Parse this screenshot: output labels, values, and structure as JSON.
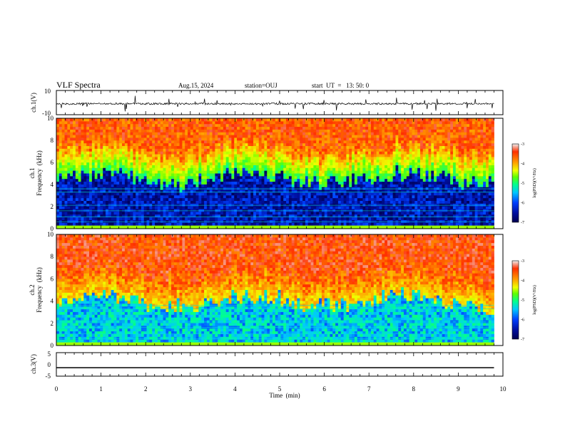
{
  "header": {
    "title": "VLF Spectra",
    "date": "Aug.15, 2024",
    "station": "station=OUJ",
    "start": "start  UT  =   13: 50: 0"
  },
  "colors": {
    "waveform": "#000000",
    "background": "#ffffff",
    "colormap": [
      "#000050",
      "#0010a0",
      "#0040ff",
      "#00c8ff",
      "#00ff90",
      "#60ff00",
      "#f0ff00",
      "#ffa000",
      "#ff3000",
      "#f0f0f0"
    ]
  },
  "chart_data": [
    {
      "type": "line",
      "panel": "ch1-waveform",
      "ylabel": "ch.1(V)",
      "yticks": [
        "10",
        "-10"
      ],
      "ylim": [
        -10,
        10
      ],
      "xlim": [
        0,
        10
      ],
      "note": "noisy signal near -1 V with spikes",
      "baseline": -1.0
    },
    {
      "type": "heatmap",
      "panel": "ch1-spectrogram",
      "ylabel": [
        "ch.1",
        "Frequency  (kHz)"
      ],
      "yticks": [
        "0",
        "2",
        "4",
        "6",
        "8",
        "10"
      ],
      "ylim": [
        0,
        10
      ],
      "xlim": [
        0,
        10
      ],
      "data_end_min": 9.8,
      "profile": {
        "low_band_khz": [
          0.3,
          4.5
        ],
        "low_band_value": -6.5,
        "high_band_value": -3.6
      },
      "colorbar": {
        "label": "log(PSD)(V²/Hz)",
        "ticks": [
          "-3",
          "-4",
          "-5",
          "-6",
          "-7"
        ],
        "range": [
          -7,
          -3
        ]
      }
    },
    {
      "type": "heatmap",
      "panel": "ch2-spectrogram",
      "ylabel": [
        "ch.2",
        "Frequency  (kHz)"
      ],
      "yticks": [
        "0",
        "2",
        "4",
        "6",
        "8",
        "10"
      ],
      "ylim": [
        0,
        10
      ],
      "xlim": [
        0,
        10
      ],
      "data_end_min": 9.8,
      "profile": {
        "low_band_khz": [
          0.3,
          4.0
        ],
        "low_band_value": -5.6,
        "high_band_value": -3.5
      },
      "colorbar": {
        "label": "log(PSD)(V²/Hz)",
        "ticks": [
          "-3",
          "-4",
          "-5",
          "-6",
          "-7"
        ],
        "range": [
          -7,
          -3
        ]
      }
    },
    {
      "type": "line",
      "panel": "ch3-waveform",
      "ylabel": "ch.3(V)",
      "yticks": [
        "5",
        "0",
        "-5"
      ],
      "ylim": [
        -5,
        5
      ],
      "xlim": [
        0,
        10
      ],
      "x": [
        0,
        9.8
      ],
      "y": [
        -1.5,
        -1.5
      ]
    }
  ],
  "xaxis": {
    "label": "Time  (min)",
    "ticks": [
      "0",
      "1",
      "2",
      "3",
      "4",
      "5",
      "6",
      "7",
      "8",
      "9",
      "10"
    ],
    "range": [
      0,
      10
    ]
  }
}
